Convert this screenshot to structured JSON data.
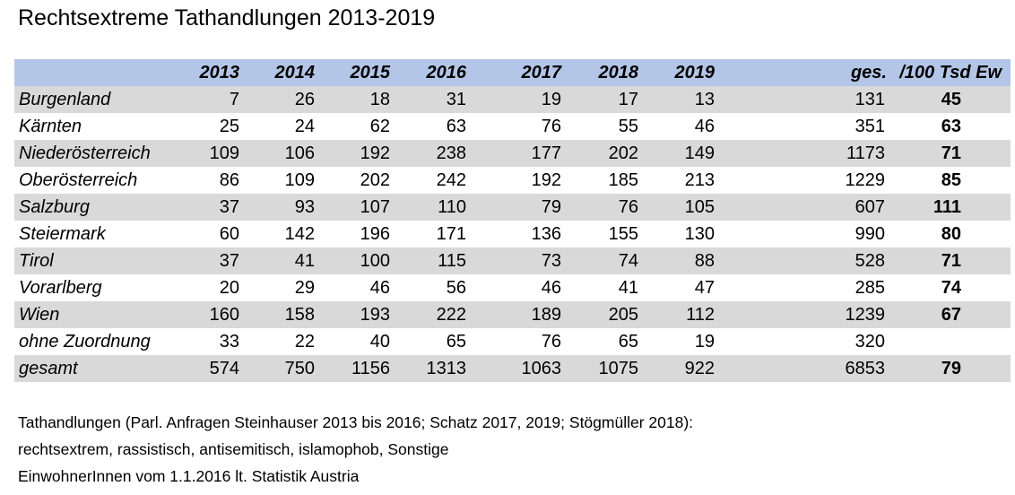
{
  "title": "Rechtsextreme Tathandlungen 2013-2019",
  "colors": {
    "header_bg": "#b4c6e7",
    "row_shade": "#d9d9d9"
  },
  "table": {
    "headers": [
      "2013",
      "2014",
      "2015",
      "2016",
      "2017",
      "2018",
      "2019",
      "ges.",
      "/100 Tsd Ew"
    ],
    "rows": [
      {
        "label": "Burgenland",
        "values": [
          "7",
          "26",
          "18",
          "31",
          "19",
          "17",
          "13",
          "131",
          "45"
        ]
      },
      {
        "label": "Kärnten",
        "values": [
          "25",
          "24",
          "62",
          "63",
          "76",
          "55",
          "46",
          "351",
          "63"
        ]
      },
      {
        "label": "Niederösterreich",
        "values": [
          "109",
          "106",
          "192",
          "238",
          "177",
          "202",
          "149",
          "1173",
          "71"
        ]
      },
      {
        "label": "Oberösterreich",
        "values": [
          "86",
          "109",
          "202",
          "242",
          "192",
          "185",
          "213",
          "1229",
          "85"
        ]
      },
      {
        "label": "Salzburg",
        "values": [
          "37",
          "93",
          "107",
          "110",
          "79",
          "76",
          "105",
          "607",
          "111"
        ]
      },
      {
        "label": "Steiermark",
        "values": [
          "60",
          "142",
          "196",
          "171",
          "136",
          "155",
          "130",
          "990",
          "80"
        ]
      },
      {
        "label": "Tirol",
        "values": [
          "37",
          "41",
          "100",
          "115",
          "73",
          "74",
          "88",
          "528",
          "71"
        ]
      },
      {
        "label": "Vorarlberg",
        "values": [
          "20",
          "29",
          "46",
          "56",
          "46",
          "41",
          "47",
          "285",
          "74"
        ]
      },
      {
        "label": "Wien",
        "values": [
          "160",
          "158",
          "193",
          "222",
          "189",
          "205",
          "112",
          "1239",
          "67"
        ]
      },
      {
        "label": "ohne Zuordnung",
        "values": [
          "33",
          "22",
          "40",
          "65",
          "76",
          "65",
          "19",
          "320",
          ""
        ]
      },
      {
        "label": "gesamt",
        "values": [
          "574",
          "750",
          "1156",
          "1313",
          "1063",
          "1075",
          "922",
          "6853",
          "79"
        ]
      }
    ]
  },
  "notes": [
    "Tathandlungen (Parl. Anfragen Steinhauser 2013 bis 2016; Schatz 2017, 2019; Stögmüller 2018):",
    "rechtsextrem, rassistisch, antisemitisch, islamophob, Sonstige",
    "EinwohnerInnen vom 1.1.2016 lt. Statistik Austria"
  ]
}
